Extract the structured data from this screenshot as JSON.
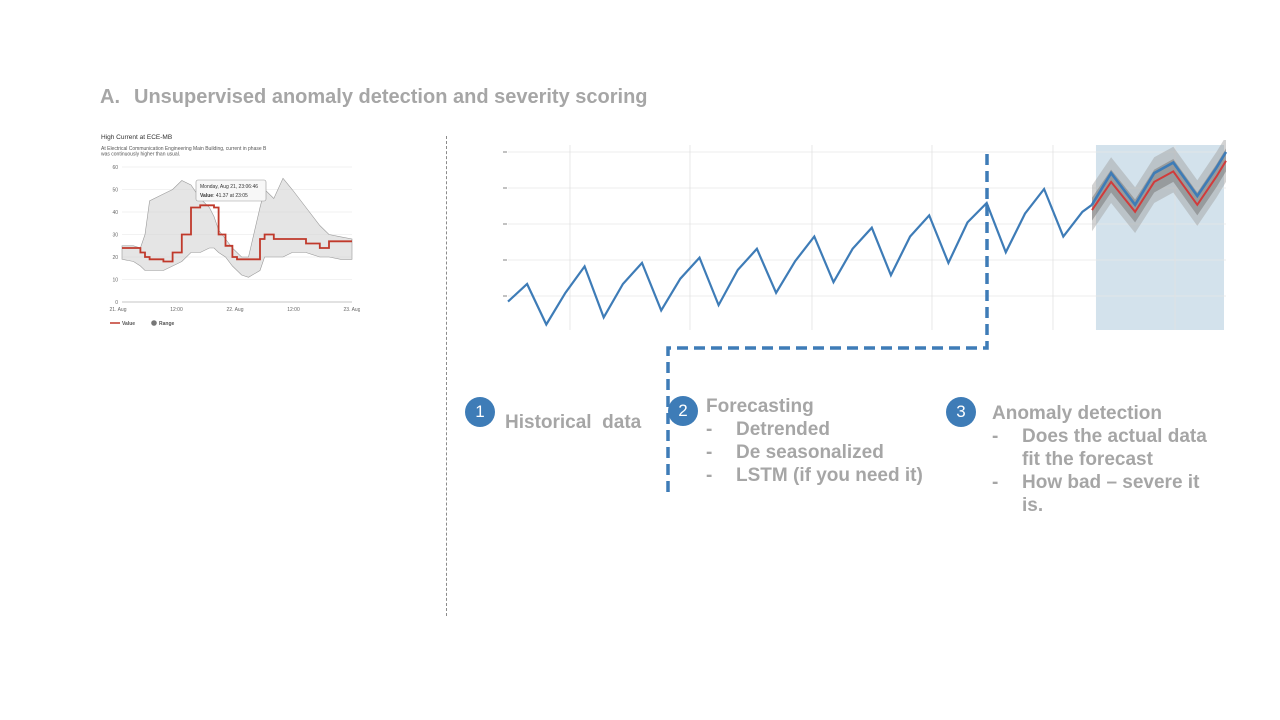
{
  "slide": {
    "title_label": "A.",
    "title_text": "Unsupervised anomaly detection and severity scoring"
  },
  "steps": [
    {
      "number": "1",
      "heading": "Historical  data",
      "items": []
    },
    {
      "number": "2",
      "heading": "Forecasting",
      "items": [
        "Detrended",
        "De seasonalized",
        "LSTM (if you need it)"
      ]
    },
    {
      "number": "3",
      "heading": "Anomaly detection",
      "items": [
        "Does the actual data fit the forecast",
        "How bad – severe it is."
      ]
    }
  ],
  "colors": {
    "accent": "#3e7cb7",
    "text_gray": "#a6a6a6",
    "forecast_region": "#d3e2ec",
    "value_red": "#c0392b"
  },
  "chart_data": [
    {
      "type": "line",
      "title": "High Current at ECE-MB",
      "subtitle": "At Electrical Communication Engineering Main Building, current in phase B was continuously higher than usual.",
      "yticks": [
        0,
        10,
        20,
        30,
        40,
        50,
        60
      ],
      "ylim": [
        0,
        60
      ],
      "xticks": [
        "21. Aug",
        "12:00",
        "22. Aug",
        "12:00",
        "23. Aug"
      ],
      "tooltip": {
        "line1": "Monday, Aug 21, 23:06:46",
        "line2_label": "Value",
        "line2_value": ": 41.37 at 23:05"
      },
      "legend": [
        "Value",
        "Range"
      ],
      "legend_position": "bottom-left",
      "x": [
        0,
        0.05,
        0.08,
        0.1,
        0.12,
        0.18,
        0.22,
        0.26,
        0.3,
        0.34,
        0.38,
        0.4,
        0.42,
        0.45,
        0.48,
        0.5,
        0.52,
        0.55,
        0.6,
        0.62,
        0.66,
        0.7,
        0.74,
        0.8,
        0.86,
        0.9,
        0.95,
        1.0
      ],
      "series": [
        {
          "name": "Value",
          "values": [
            24,
            24,
            22,
            20,
            19,
            18,
            22,
            30,
            42,
            43,
            43,
            42,
            30,
            25,
            20,
            19,
            19,
            19,
            28,
            30,
            28,
            28,
            28,
            26,
            24,
            27,
            27,
            27
          ]
        },
        {
          "name": "Range",
          "type": "band",
          "upper": [
            25,
            25,
            24,
            30,
            45,
            48,
            50,
            54,
            52,
            46,
            42,
            38,
            32,
            28,
            24,
            22,
            20,
            20,
            42,
            50,
            46,
            55,
            50,
            42,
            34,
            30,
            29,
            28
          ],
          "lower": [
            19,
            18,
            16,
            14,
            14,
            14,
            16,
            18,
            22,
            22,
            24,
            24,
            22,
            20,
            16,
            14,
            12,
            11,
            14,
            20,
            20,
            20,
            22,
            22,
            20,
            20,
            19,
            19
          ]
        }
      ]
    },
    {
      "type": "line",
      "title": "",
      "forecast_region_x": [
        122,
        150
      ],
      "xlim": [
        0,
        150
      ],
      "ylim": [
        0,
        100
      ],
      "series": [
        {
          "name": "",
          "role": "historical",
          "x": [
            0,
            4,
            8,
            12,
            16,
            20,
            24,
            28,
            32,
            36,
            40,
            44,
            48,
            52,
            56,
            60,
            64,
            68,
            72,
            76,
            80,
            84,
            88,
            92,
            96,
            100,
            104,
            108,
            112,
            116,
            120,
            122
          ],
          "values": [
            15,
            25,
            2,
            20,
            35,
            6,
            25,
            37,
            10,
            28,
            40,
            13,
            33,
            45,
            20,
            38,
            52,
            26,
            45,
            57,
            30,
            52,
            64,
            37,
            60,
            71,
            43,
            65,
            79,
            52,
            66,
            70
          ]
        },
        {
          "name": "",
          "role": "actual",
          "x": [
            122,
            126,
            131,
            135,
            139,
            144,
            148,
            150
          ],
          "values": [
            70,
            88,
            70,
            88,
            94,
            75,
            91,
            100
          ]
        },
        {
          "name": "",
          "role": "forecast",
          "x": [
            122,
            126,
            131,
            135,
            139,
            144,
            148,
            150
          ],
          "values": [
            67,
            83,
            66,
            83,
            89,
            70,
            86,
            95
          ]
        }
      ]
    }
  ]
}
